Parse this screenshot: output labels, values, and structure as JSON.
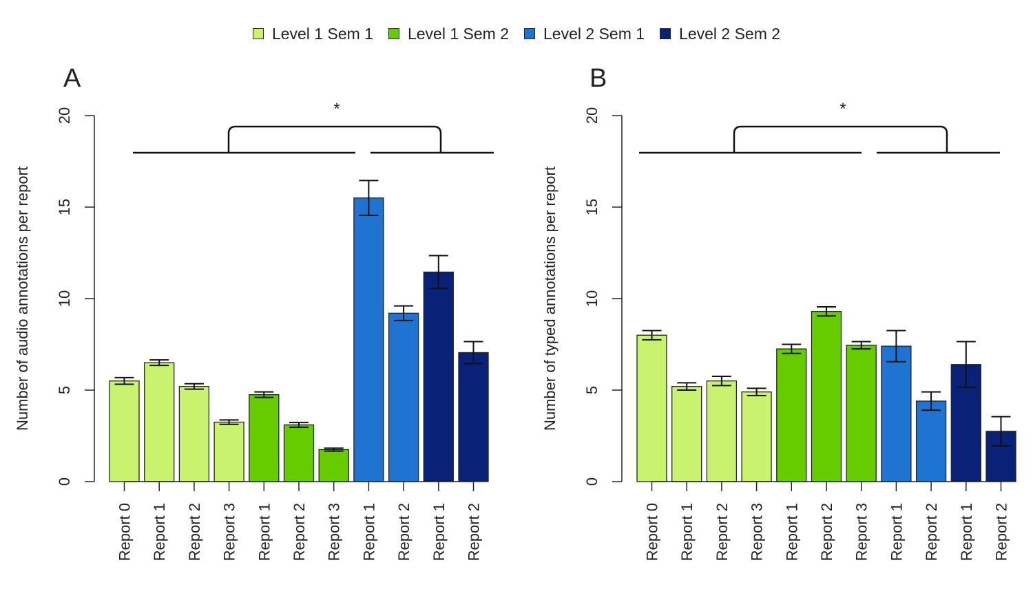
{
  "legend": [
    {
      "label": "Level 1 Sem 1",
      "color": "#c9f26e"
    },
    {
      "label": "Level 1 Sem 2",
      "color": "#66cc00"
    },
    {
      "label": "Level 2 Sem 1",
      "color": "#1f74d1"
    },
    {
      "label": "Level 2 Sem 2",
      "color": "#0a2178"
    }
  ],
  "significance_marker": "*",
  "chart_data": [
    {
      "type": "bar",
      "panel_label": "A",
      "ylabel": "Number of audio annotations per report",
      "ylim": [
        0,
        20
      ],
      "yticks": [
        0,
        5,
        10,
        15,
        20
      ],
      "categories": [
        "Report 0",
        "Report 1",
        "Report 2",
        "Report 3",
        "Report 1",
        "Report 2",
        "Report 3",
        "Report 1",
        "Report 2",
        "Report 1",
        "Report 2"
      ],
      "groups": [
        0,
        0,
        0,
        0,
        1,
        1,
        1,
        2,
        2,
        3,
        3
      ],
      "values": [
        5.5,
        6.5,
        5.2,
        3.25,
        4.75,
        3.1,
        1.75,
        15.5,
        9.2,
        11.45,
        7.05
      ],
      "errors": [
        0.18,
        0.15,
        0.15,
        0.12,
        0.15,
        0.13,
        0.08,
        0.95,
        0.4,
        0.9,
        0.6
      ]
    },
    {
      "type": "bar",
      "panel_label": "B",
      "ylabel": "Number of typed annotations per report",
      "ylim": [
        0,
        20
      ],
      "yticks": [
        0,
        5,
        10,
        15,
        20
      ],
      "categories": [
        "Report 0",
        "Report 1",
        "Report 2",
        "Report 3",
        "Report 1",
        "Report 2",
        "Report 3",
        "Report 1",
        "Report 2",
        "Report 1",
        "Report 2"
      ],
      "groups": [
        0,
        0,
        0,
        0,
        1,
        1,
        1,
        2,
        2,
        3,
        3
      ],
      "values": [
        8.0,
        5.2,
        5.5,
        4.9,
        7.25,
        9.3,
        7.45,
        7.4,
        4.4,
        6.4,
        2.75
      ],
      "errors": [
        0.25,
        0.2,
        0.25,
        0.2,
        0.25,
        0.25,
        0.2,
        0.85,
        0.5,
        1.25,
        0.8
      ]
    }
  ]
}
